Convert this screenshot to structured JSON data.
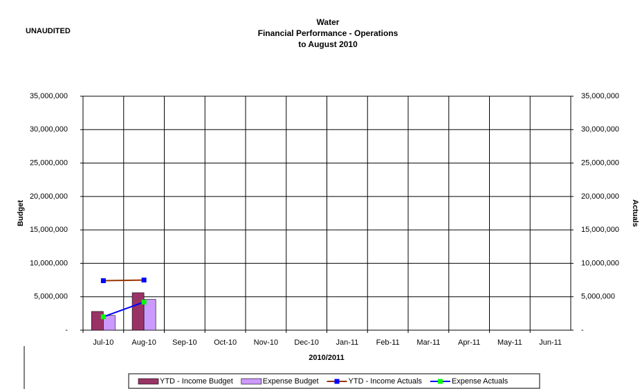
{
  "chart_data": {
    "type": "bar_line",
    "title": [
      "Water",
      "Financial Performance - Operations",
      "to August 2010"
    ],
    "annotation": "UNAUDITED",
    "y_label": "Budget",
    "y2_label": "Actuals",
    "x_label": "2010/2011",
    "categories": [
      "Jul-10",
      "Aug-10",
      "Sep-10",
      "Oct-10",
      "Nov-10",
      "Dec-10",
      "Jan-11",
      "Feb-11",
      "Mar-11",
      "Apr-11",
      "May-11",
      "Jun-11"
    ],
    "series": [
      {
        "name": "YTD - Income Budget",
        "kind": "bar",
        "color": "#993366",
        "values": [
          2800000,
          5600000,
          null,
          null,
          null,
          null,
          null,
          null,
          null,
          null,
          null,
          null
        ]
      },
      {
        "name": "Expense Budget",
        "kind": "bar",
        "color": "#CC99FF",
        "values": [
          2200000,
          4600000,
          null,
          null,
          null,
          null,
          null,
          null,
          null,
          null,
          null,
          null
        ]
      },
      {
        "name": "YTD - Income Actuals",
        "kind": "line",
        "axis": "y2",
        "color": "#993300",
        "marker_color": "#0000FF",
        "values": [
          7400000,
          7500000,
          null,
          null,
          null,
          null,
          null,
          null,
          null,
          null,
          null,
          null
        ]
      },
      {
        "name": "Expense Actuals",
        "kind": "line",
        "axis": "y2",
        "color": "#0000FF",
        "marker_color": "#00FF00",
        "values": [
          2000000,
          4200000,
          null,
          null,
          null,
          null,
          null,
          null,
          null,
          null,
          null,
          null
        ]
      }
    ],
    "ylim": [
      0,
      35000000
    ],
    "yticks": [
      {
        "value": 0,
        "label": "-"
      },
      {
        "value": 5000000,
        "label": "5,000,000"
      },
      {
        "value": 10000000,
        "label": "10,000,000"
      },
      {
        "value": 15000000,
        "label": "15,000,000"
      },
      {
        "value": 20000000,
        "label": "20,000,000"
      },
      {
        "value": 25000000,
        "label": "25,000,000"
      },
      {
        "value": 30000000,
        "label": "30,000,000"
      },
      {
        "value": 35000000,
        "label": "35,000,000"
      }
    ],
    "y2lim": [
      0,
      35000000
    ],
    "y2ticks": [
      {
        "value": 0,
        "label": "-"
      },
      {
        "value": 5000000,
        "label": "5,000,000"
      },
      {
        "value": 10000000,
        "label": "10,000,000"
      },
      {
        "value": 15000000,
        "label": "15,000,000"
      },
      {
        "value": 20000000,
        "label": "20,000,000"
      },
      {
        "value": 25000000,
        "label": "25,000,000"
      },
      {
        "value": 30000000,
        "label": "30,000,000"
      },
      {
        "value": 35000000,
        "label": "35,000,000"
      }
    ],
    "grid": true,
    "legend": "bottom"
  }
}
